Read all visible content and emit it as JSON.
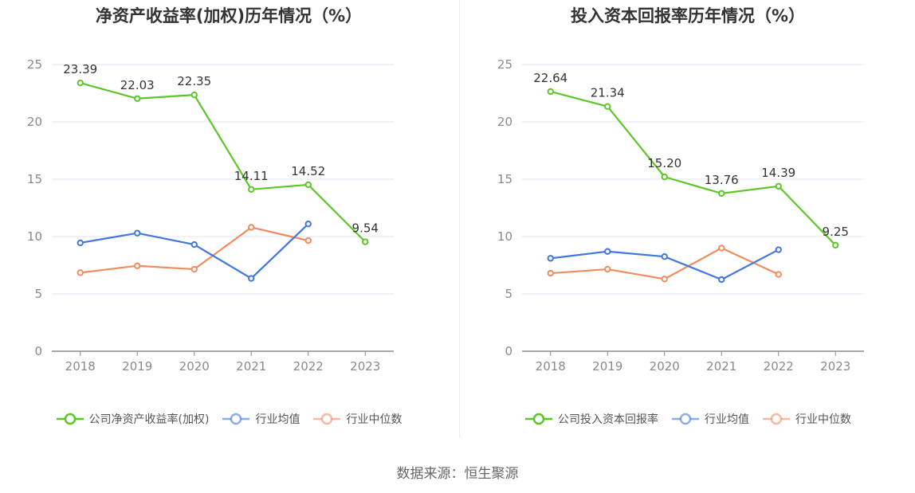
{
  "source": "数据来源：恒生聚源",
  "chart_data": [
    {
      "type": "line",
      "title": "净资产收益率(加权)历年情况（%）",
      "xlabel": "",
      "ylabel": "",
      "categories": [
        "2018",
        "2019",
        "2020",
        "2021",
        "2022",
        "2023"
      ],
      "ylim": [
        0,
        25
      ],
      "yticks": [
        0,
        5,
        10,
        15,
        20,
        25
      ],
      "grid": true,
      "legend_position": "bottom",
      "series": [
        {
          "name": "公司净资产收益率(加权)",
          "color": "#5cc62a",
          "values": [
            23.39,
            22.03,
            22.35,
            14.11,
            14.52,
            9.54
          ],
          "labels": [
            "23.39",
            "22.03",
            "22.35",
            "14.11",
            "14.52",
            "9.54"
          ]
        },
        {
          "name": "行业均值",
          "color": "#4276e0",
          "values": [
            9.45,
            10.3,
            9.3,
            6.35,
            11.1,
            null
          ]
        },
        {
          "name": "行业中位数",
          "color": "#f08c5e",
          "values": [
            6.85,
            7.45,
            7.15,
            10.8,
            9.65,
            null
          ]
        }
      ]
    },
    {
      "type": "line",
      "title": "投入资本回报率历年情况（%）",
      "xlabel": "",
      "ylabel": "",
      "categories": [
        "2018",
        "2019",
        "2020",
        "2021",
        "2022",
        "2023"
      ],
      "ylim": [
        0,
        25
      ],
      "yticks": [
        0,
        5,
        10,
        15,
        20,
        25
      ],
      "grid": true,
      "legend_position": "bottom",
      "series": [
        {
          "name": "公司投入资本回报率",
          "color": "#5cc62a",
          "values": [
            22.64,
            21.34,
            15.2,
            13.76,
            14.39,
            9.25
          ],
          "labels": [
            "22.64",
            "21.34",
            "15.20",
            "13.76",
            "14.39",
            "9.25"
          ]
        },
        {
          "name": "行业均值",
          "color": "#4276e0",
          "values": [
            8.1,
            8.7,
            8.25,
            6.25,
            8.85,
            null
          ]
        },
        {
          "name": "行业中位数",
          "color": "#f08c5e",
          "values": [
            6.8,
            7.15,
            6.3,
            9.0,
            6.7,
            null
          ]
        }
      ]
    }
  ]
}
